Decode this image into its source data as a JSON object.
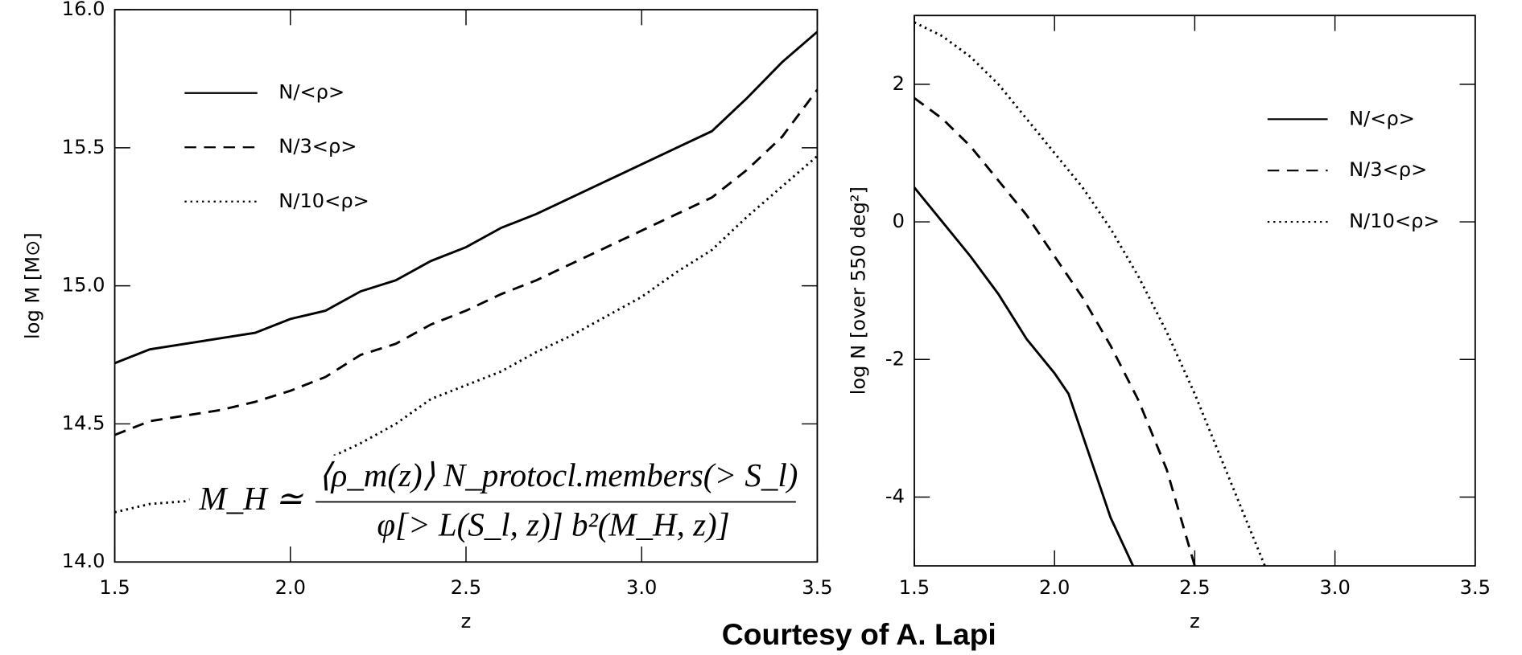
{
  "caption": "Courtesy of A. Lapi",
  "chart_data": [
    {
      "type": "line",
      "xlabel": "z",
      "ylabel": "log M [M⊙]",
      "x": [
        1.5,
        1.6,
        1.7,
        1.8,
        1.9,
        2.0,
        2.1,
        2.2,
        2.3,
        2.4,
        2.5,
        2.6,
        2.7,
        2.8,
        2.9,
        3.0,
        3.1,
        3.2,
        3.3,
        3.4,
        3.5
      ],
      "series": [
        {
          "name": "N/<ρ>",
          "color": "#000000",
          "dash": "solid",
          "values": [
            14.72,
            14.77,
            14.79,
            14.81,
            14.83,
            14.88,
            14.91,
            14.98,
            15.02,
            15.09,
            15.14,
            15.21,
            15.26,
            15.32,
            15.38,
            15.44,
            15.5,
            15.56,
            15.68,
            15.81,
            15.92
          ]
        },
        {
          "name": "N/3<ρ>",
          "color": "#000000",
          "dash": "dashed",
          "values": [
            14.46,
            14.51,
            14.53,
            14.55,
            14.58,
            14.62,
            14.67,
            14.75,
            14.79,
            14.86,
            14.91,
            14.97,
            15.02,
            15.08,
            15.14,
            15.2,
            15.26,
            15.32,
            15.42,
            15.54,
            15.71
          ]
        },
        {
          "name": "N/10<ρ>",
          "color": "#000000",
          "dash": "dotted",
          "values": [
            14.18,
            14.21,
            14.22,
            14.26,
            14.3,
            14.34,
            14.37,
            14.43,
            14.5,
            14.59,
            14.64,
            14.69,
            14.76,
            14.82,
            14.89,
            14.96,
            15.05,
            15.13,
            15.25,
            15.36,
            15.47
          ]
        }
      ],
      "xlim": [
        1.5,
        3.5
      ],
      "xticks": [
        1.5,
        {
          "value": 2,
          "label": "2.0"
        },
        2.5,
        {
          "value": 3,
          "label": "3.0"
        },
        3.5
      ],
      "ylim": [
        14,
        16
      ],
      "yticks": [
        {
          "value": 14,
          "label": "14.0"
        },
        14.5,
        {
          "value": 15,
          "label": "15.0"
        },
        15.5,
        {
          "value": 16,
          "label": "16.0"
        }
      ],
      "legend": "upper left",
      "annotation": {
        "lhs": "M_H ≃",
        "numerator": "⟨ρ_m(z)⟩ N_protocl.members(> S_l)",
        "denominator": "φ[> L(S_l, z)] b²(M_H, z)]"
      }
    },
    {
      "type": "line",
      "xlabel": "z",
      "ylabel": "log N [over 550 deg²]",
      "series": [
        {
          "name": "N/<ρ>",
          "color": "#000000",
          "dash": "solid",
          "x": [
            1.5,
            1.6,
            1.7,
            1.8,
            1.9,
            2.0,
            2.05,
            2.1,
            2.2,
            2.28
          ],
          "values": [
            0.5,
            0.0,
            -0.5,
            -1.05,
            -1.7,
            -2.2,
            -2.5,
            -3.1,
            -4.3,
            -5
          ]
        },
        {
          "name": "N/3<ρ>",
          "color": "#000000",
          "dash": "dashed",
          "x": [
            1.5,
            1.6,
            1.7,
            1.8,
            1.9,
            2.0,
            2.1,
            2.2,
            2.3,
            2.4,
            2.5
          ],
          "values": [
            1.8,
            1.5,
            1.1,
            0.6,
            0.1,
            -0.5,
            -1.1,
            -1.8,
            -2.6,
            -3.6,
            -5
          ]
        },
        {
          "name": "N/10<ρ>",
          "color": "#000000",
          "dash": "dotted",
          "x": [
            1.5,
            1.6,
            1.7,
            1.8,
            1.9,
            2.0,
            2.1,
            2.2,
            2.3,
            2.4,
            2.5,
            2.6,
            2.7,
            2.75
          ],
          "values": [
            2.9,
            2.7,
            2.4,
            2.0,
            1.5,
            1.0,
            0.5,
            -0.1,
            -0.8,
            -1.6,
            -2.5,
            -3.5,
            -4.5,
            -5
          ]
        }
      ],
      "xlim": [
        1.5,
        3.5
      ],
      "xticks": [
        1.5,
        {
          "value": 2,
          "label": "2.0"
        },
        2.5,
        {
          "value": 3,
          "label": "3.0"
        },
        3.5
      ],
      "ylim": [
        -5,
        3
      ],
      "yticks": [
        -4,
        -2,
        0,
        2
      ],
      "legend": "upper right"
    }
  ]
}
